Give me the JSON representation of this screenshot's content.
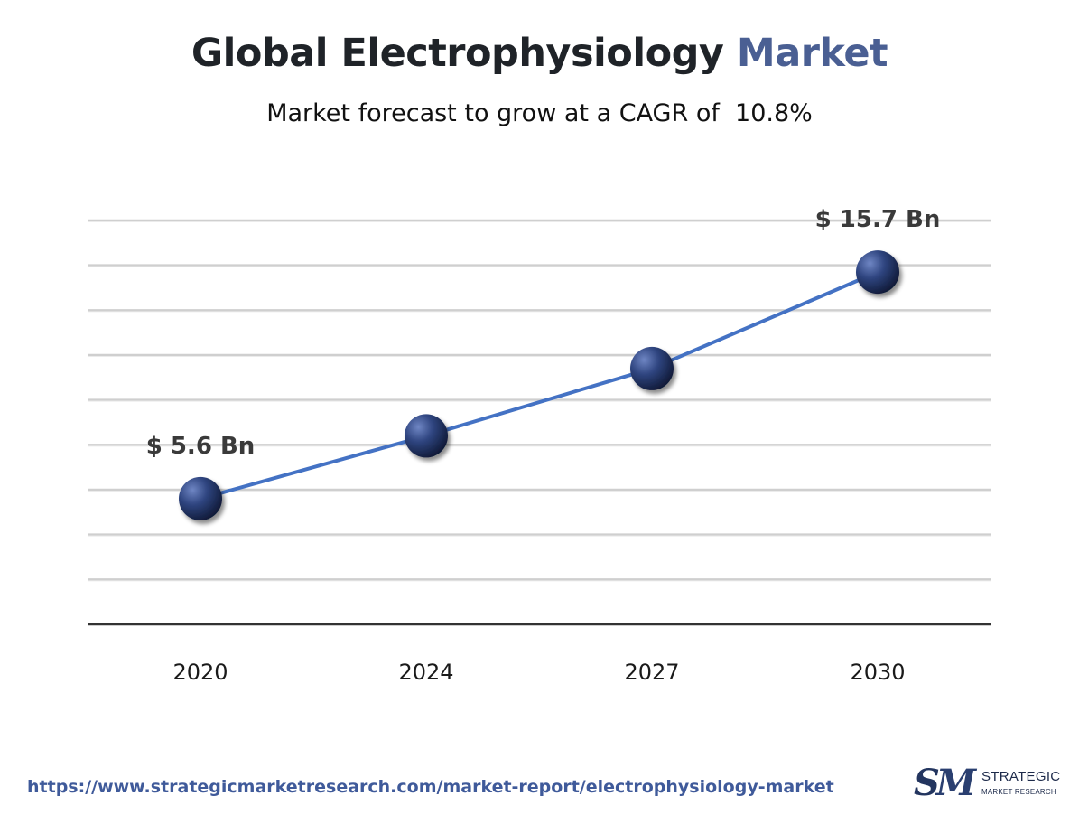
{
  "header": {
    "title_part1": "Global Electrophysiology",
    "title_part2": "Market",
    "subtitle": "Market forecast to grow at a CAGR of  10.8%"
  },
  "chart_data": {
    "type": "line",
    "title": "Global Electrophysiology Market",
    "subtitle": "Market forecast to grow at a CAGR of  10.8%",
    "categories": [
      "2020",
      "2024",
      "2027",
      "2030"
    ],
    "x": [
      2020,
      2024,
      2027,
      2030
    ],
    "values": [
      5.6,
      8.4,
      11.4,
      15.7
    ],
    "data_labels": [
      {
        "category": "2020",
        "text": "$ 5.6 Bn"
      },
      {
        "category": "2030",
        "text": "$ 15.7 Bn"
      }
    ],
    "xlabel": "",
    "ylabel": "",
    "ylim": [
      0,
      18
    ],
    "grid": true,
    "legend": "none",
    "colors": {
      "line": "#4472c4",
      "marker": "#2b3f73",
      "grid": "#cfcfcf",
      "axis": "#333333"
    }
  },
  "footer": {
    "url": "https://www.strategicmarketresearch.com/market-report/electrophysiology-market",
    "logo_line1": "STRATEGIC",
    "logo_line2": "MARKET RESEARCH"
  }
}
